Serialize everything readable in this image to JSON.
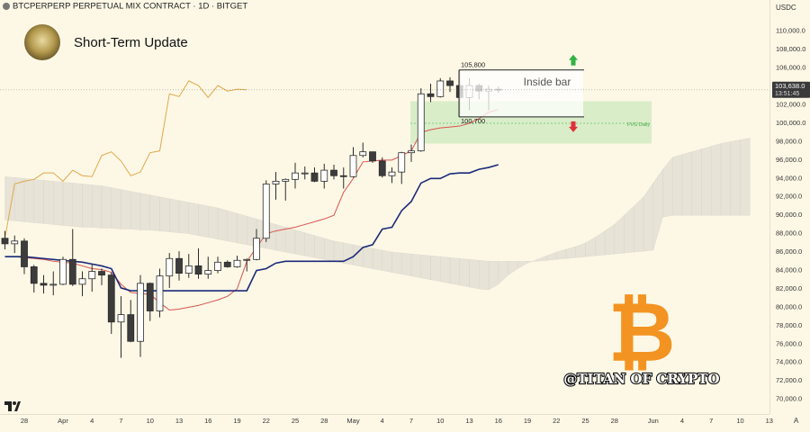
{
  "header": {
    "symbol_title": "BTCPERPERP PERPETUAL MIX CONTRACT · 1D · BITGET",
    "headline": "Short-Term Update",
    "currency": "USDC"
  },
  "watermark": "@TITAN OF CRYPTO",
  "chart_data": {
    "type": "candlestick",
    "categories": [
      null,
      null,
      "28",
      null,
      null,
      null,
      "Apr",
      null,
      null,
      "4",
      null,
      null,
      "7",
      null,
      null,
      "10",
      null,
      null,
      "13",
      null,
      null,
      "16",
      null,
      null,
      "19",
      null,
      null,
      "22",
      null,
      null,
      "25",
      null,
      null,
      "28",
      null,
      null,
      "May",
      null,
      null,
      "4",
      null,
      null,
      "7",
      null,
      null,
      "10",
      null,
      null,
      "13",
      null,
      null,
      "16",
      null,
      null,
      "19",
      null,
      null,
      "22",
      null,
      null,
      "25",
      null,
      null,
      "28",
      null,
      null,
      null,
      "Jun",
      null,
      null,
      "4",
      null,
      null,
      "7",
      null,
      null,
      "10",
      null,
      null,
      "13"
    ],
    "open": [
      87500,
      86900,
      87200,
      84400,
      82600,
      82400,
      82500,
      85200,
      82500,
      83100,
      83900,
      83500,
      78400,
      79200,
      76300,
      82600,
      79600,
      83400,
      85300,
      83700,
      84500,
      83600,
      84000,
      84900,
      84400,
      85100,
      85200,
      87500,
      93400,
      93700,
      93900,
      94600,
      94600,
      93700,
      94900,
      94300,
      94200,
      96500,
      96900,
      95900,
      94300,
      94700,
      96800,
      97000,
      103200,
      102900,
      104600,
      104100,
      102800,
      104100,
      103500,
      103700,
      null,
      null,
      null,
      null,
      null,
      null,
      null,
      null,
      null,
      null,
      null,
      null,
      null,
      null,
      null,
      null,
      null,
      null,
      null,
      null,
      null,
      null,
      null,
      null,
      null,
      null,
      null,
      null
    ],
    "high": [
      88300,
      87800,
      87500,
      84600,
      83500,
      83900,
      85500,
      88500,
      83900,
      84700,
      84200,
      83800,
      81200,
      80800,
      83500,
      82700,
      84200,
      85900,
      86100,
      85800,
      86400,
      85500,
      85500,
      85100,
      85600,
      85300,
      88500,
      93800,
      94700,
      94000,
      95700,
      95300,
      95200,
      95600,
      95500,
      95200,
      97400,
      97900,
      96900,
      96300,
      95200,
      96900,
      97700,
      103800,
      104300,
      104900,
      105000,
      105800,
      104900,
      104300,
      104100,
      104000,
      null,
      null,
      null,
      null,
      null,
      null,
      null,
      null,
      null,
      null,
      null,
      null,
      null,
      null,
      null,
      null,
      null,
      null,
      null,
      null,
      null,
      null,
      null,
      null,
      null,
      null,
      null,
      null
    ],
    "low": [
      86300,
      85900,
      83600,
      81600,
      81500,
      81300,
      82400,
      82300,
      81200,
      81700,
      82400,
      77100,
      74500,
      76200,
      74600,
      78500,
      78900,
      82100,
      82900,
      83200,
      83100,
      83100,
      83700,
      84300,
      84300,
      83900,
      85100,
      87100,
      91700,
      91600,
      92900,
      93900,
      93600,
      92900,
      93900,
      92900,
      94100,
      96300,
      95700,
      94100,
      93500,
      93400,
      95800,
      96900,
      102300,
      102800,
      103400,
      100700,
      101400,
      102600,
      101400,
      103300,
      null,
      null,
      null,
      null,
      null,
      null,
      null,
      null,
      null,
      null,
      null,
      null,
      null,
      null,
      null,
      null,
      null,
      null,
      null,
      null,
      null,
      null,
      null,
      null,
      null,
      null,
      null,
      null
    ],
    "close": [
      86900,
      87200,
      84400,
      82600,
      82400,
      82500,
      85200,
      82500,
      83100,
      83900,
      83500,
      78400,
      79200,
      76300,
      82600,
      79600,
      83400,
      85300,
      83700,
      84500,
      83600,
      84000,
      84900,
      84400,
      85100,
      85200,
      87500,
      93400,
      93700,
      93900,
      94600,
      94600,
      93700,
      94900,
      94300,
      94200,
      96500,
      96900,
      95900,
      94300,
      94700,
      96800,
      97000,
      103200,
      102900,
      104600,
      104100,
      102800,
      104100,
      103500,
      103700,
      103638,
      null,
      null,
      null,
      null,
      null,
      null,
      null,
      null,
      null,
      null,
      null,
      null,
      null,
      null,
      null,
      null,
      null,
      null,
      null,
      null,
      null,
      null,
      null,
      null,
      null,
      null,
      null,
      null
    ],
    "up_color": "#ffffff",
    "down_color": "#3c3c3c",
    "edge_color": "#2b2b2b",
    "lines": [
      {
        "color": "#e0a84a",
        "values": [
          87500,
          93400,
          93700,
          93900,
          94600,
          94600,
          93700,
          94900,
          94300,
          94200,
          96500,
          96900,
          95900,
          94300,
          94700,
          96800,
          97000,
          103200,
          102900,
          104600,
          104100,
          102800,
          104100,
          103500,
          103700,
          103638,
          null,
          null,
          null,
          null,
          null,
          null,
          null,
          null,
          null,
          null,
          null,
          null,
          null,
          null,
          null,
          null,
          null,
          null,
          null,
          null,
          null,
          null,
          null,
          null,
          null,
          null,
          null,
          null,
          null,
          null,
          null,
          null,
          null,
          null,
          null,
          null,
          null,
          null,
          null,
          null,
          null,
          null,
          null,
          null,
          null,
          null,
          null,
          null,
          null,
          null,
          null,
          null,
          null,
          null
        ]
      },
      {
        "color": "#d9534f",
        "values": [
          85500,
          85500,
          85400,
          85300,
          85200,
          85000,
          84900,
          84800,
          84500,
          84200,
          84100,
          83800,
          82500,
          81600,
          81500,
          81400,
          80500,
          79700,
          79800,
          80000,
          80200,
          80500,
          80800,
          81200,
          82000,
          85000,
          86500,
          88000,
          88300,
          88500,
          88700,
          89000,
          89300,
          89600,
          90000,
          92500,
          94000,
          95800,
          95900,
          96000,
          96000,
          96500,
          97000,
          99000,
          99300,
          99500,
          99600,
          99700,
          100000,
          100500,
          101200,
          101500,
          null,
          null,
          null,
          null,
          null,
          null,
          null,
          null,
          null,
          null,
          null,
          null,
          null,
          null,
          null,
          null,
          null,
          null,
          null,
          null,
          null,
          null,
          null,
          null,
          null,
          null,
          null,
          null
        ]
      },
      {
        "color": "#1b2a7a",
        "values": [
          85500,
          85500,
          85500,
          85400,
          85300,
          85200,
          85100,
          85000,
          84900,
          84700,
          84500,
          84200,
          82100,
          81800,
          81800,
          81800,
          81800,
          81800,
          81800,
          81800,
          81800,
          81800,
          81800,
          81800,
          81800,
          81800,
          84000,
          84200,
          84800,
          85000,
          85000,
          85000,
          85000,
          85000,
          85000,
          85000,
          85500,
          86500,
          86800,
          88500,
          88700,
          90500,
          91500,
          93500,
          94000,
          94000,
          94500,
          94600,
          94600,
          95000,
          95200,
          95500,
          null,
          null,
          null,
          null,
          null,
          null,
          null,
          null,
          null,
          null,
          null,
          null,
          null,
          null,
          null,
          null,
          null,
          null,
          null,
          null,
          null,
          null,
          null,
          null,
          null,
          null,
          null,
          null
        ]
      }
    ],
    "cloud": {
      "color": "#d9d6cc",
      "span_a": [
        89500,
        89400,
        89300,
        89200,
        89100,
        89000,
        88900,
        88800,
        88700,
        88700,
        88600,
        88600,
        88500,
        88500,
        88400,
        88400,
        88300,
        88200,
        88100,
        88000,
        87800,
        87600,
        87400,
        87200,
        87000,
        86800,
        86600,
        86400,
        86200,
        86000,
        85800,
        85600,
        85400,
        85200,
        85000,
        84800,
        84600,
        84400,
        84200,
        84000,
        83800,
        83600,
        83400,
        83200,
        83000,
        82800,
        82600,
        82400,
        82200,
        82000,
        81900,
        82500,
        83500,
        84200,
        84800,
        85200,
        85600,
        86000,
        86300,
        86600,
        87000,
        87600,
        88300,
        89000,
        90000,
        91000,
        92000,
        93500,
        95000,
        96300,
        96600,
        96900,
        97200,
        97500,
        97800,
        98000,
        98200,
        98400,
        null,
        null
      ],
      "span_b": [
        94200,
        94100,
        94000,
        93900,
        93800,
        93700,
        93600,
        93500,
        93400,
        93300,
        93200,
        93000,
        92800,
        92600,
        92400,
        92200,
        92000,
        91800,
        91600,
        91400,
        91200,
        91000,
        90800,
        90500,
        90200,
        89900,
        89600,
        89300,
        89000,
        88700,
        88400,
        88100,
        87800,
        87500,
        87200,
        87000,
        86800,
        86600,
        86400,
        86200,
        86000,
        85900,
        85800,
        85700,
        85600,
        85500,
        85400,
        85300,
        85200,
        85100,
        85000,
        85000,
        85000,
        85000,
        85000,
        85000,
        85100,
        85200,
        85300,
        85400,
        85500,
        85600,
        85700,
        85800,
        85900,
        86000,
        86100,
        86200,
        89800,
        90000,
        90000,
        90000,
        90000,
        90000,
        90000,
        90000,
        90000,
        90000,
        null,
        null
      ]
    },
    "ylim": [
      68400,
      113400
    ],
    "yticks": [
      {
        "value": 70000,
        "label": "70,000.0"
      },
      {
        "value": 72000,
        "label": "72,000.0"
      },
      {
        "value": 74000,
        "label": "74,000.0"
      },
      {
        "value": 76000,
        "label": "76,000.0"
      },
      {
        "value": 78000,
        "label": "78,000.0"
      },
      {
        "value": 80000,
        "label": "80,000.0"
      },
      {
        "value": 82000,
        "label": "82,000.0"
      },
      {
        "value": 84000,
        "label": "84,000.0"
      },
      {
        "value": 86000,
        "label": "86,000.0"
      },
      {
        "value": 88000,
        "label": "88,000.0"
      },
      {
        "value": 90000,
        "label": "90,000.0"
      },
      {
        "value": 92000,
        "label": "92,000.0"
      },
      {
        "value": 94000,
        "label": "94,000.0"
      },
      {
        "value": 96000,
        "label": "96,000.0"
      },
      {
        "value": 98000,
        "label": "98,000.0"
      },
      {
        "value": 100000,
        "label": "100,000.0"
      },
      {
        "value": 102000,
        "label": "102,000.0"
      },
      {
        "value": 104000,
        "label": "104,000.0"
      },
      {
        "value": 106000,
        "label": "106,000.0"
      },
      {
        "value": 108000,
        "label": "108,000.0"
      },
      {
        "value": 110000,
        "label": "110,000.0"
      }
    ],
    "last_price": {
      "value": 103638,
      "label": "103,638.0"
    },
    "countdown": "13:51:45",
    "annotations": {
      "inside_bar": {
        "label": "Inside bar",
        "high": {
          "value": 105800,
          "label": "105,800"
        },
        "low": {
          "value": 100700,
          "label": "100,700"
        }
      },
      "fvg": {
        "label": "FVG Daily",
        "high": 102400,
        "low": 97800,
        "level": 100000,
        "color": "#7ccf7c"
      }
    }
  }
}
